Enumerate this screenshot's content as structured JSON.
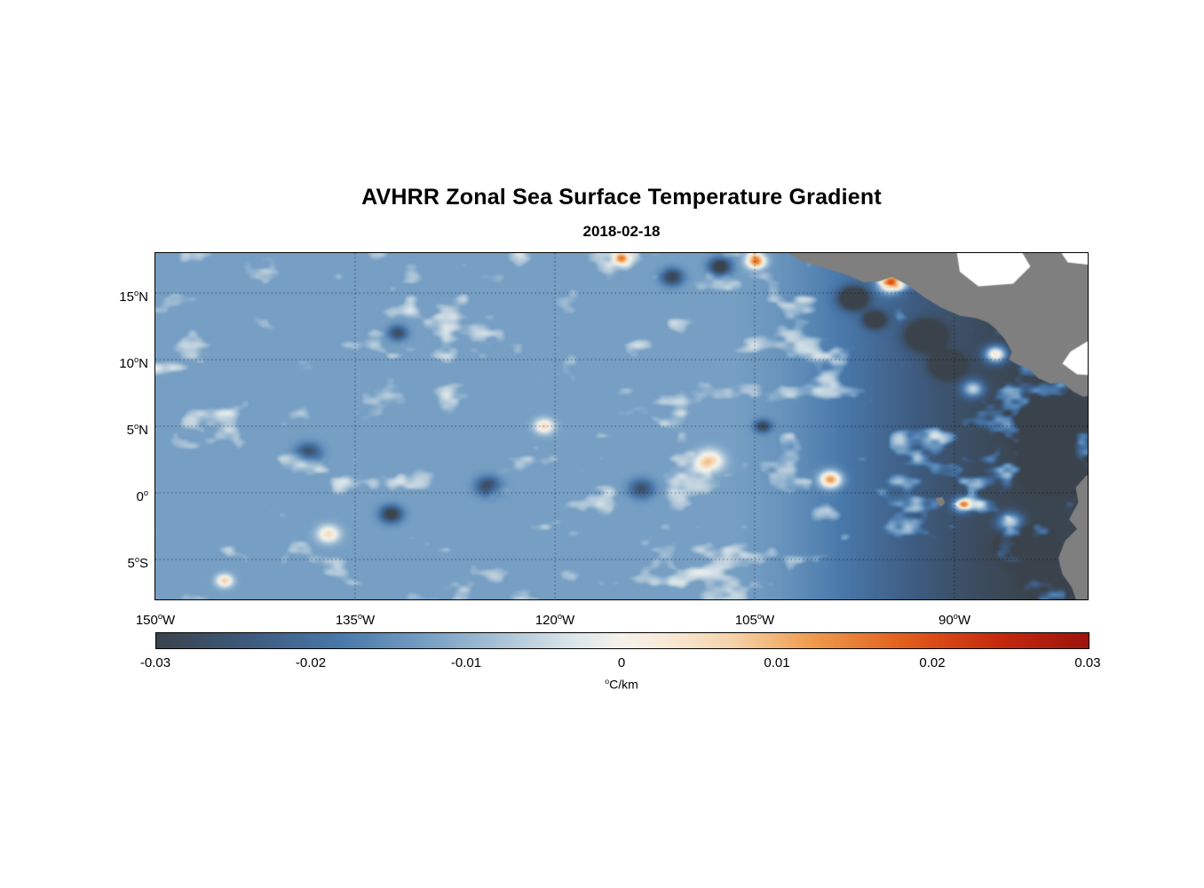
{
  "axes": {
    "deg": "o",
    "x_ticks": [
      {
        "num": "150",
        "hem": "W"
      },
      {
        "num": "135",
        "hem": "W"
      },
      {
        "num": "120",
        "hem": "W"
      },
      {
        "num": "105",
        "hem": "W"
      },
      {
        "num": "90",
        "hem": "W"
      }
    ],
    "y_ticks": [
      {
        "num": "15",
        "hem": "N"
      },
      {
        "num": "10",
        "hem": "N"
      },
      {
        "num": "5",
        "hem": "N"
      },
      {
        "num": "0",
        "hem": ""
      },
      {
        "num": "5",
        "hem": "S"
      }
    ]
  },
  "colorbar": {
    "ticks": [
      "-0.03",
      "-0.02",
      "-0.01",
      "0",
      "0.01",
      "0.02",
      "0.03"
    ],
    "unit_sup": "o",
    "unit_text": "C/km"
  },
  "chart_data": {
    "type": "heatmap",
    "title": "AVHRR Zonal Sea Surface Temperature Gradient",
    "date": "2018-02-18",
    "value_unit": "°C/km",
    "value_range": [
      -0.03,
      0.03
    ],
    "grid": "dotted",
    "x_axis": {
      "tick_labels_deg_west": [
        150,
        135,
        120,
        105,
        90
      ],
      "range_lon": [
        -150,
        -80
      ],
      "grid_lons": [
        -135,
        -120,
        -105,
        -90
      ]
    },
    "y_axis": {
      "tick_labels_deg": [
        "15N",
        "10N",
        "5N",
        "0",
        "5S"
      ],
      "range_lat": [
        -8,
        18
      ],
      "grid_lats": [
        15,
        10,
        5,
        0,
        -5
      ]
    },
    "colormap_stops": [
      [
        -0.03,
        "#3a434b"
      ],
      [
        -0.024,
        "#3d5a7e"
      ],
      [
        -0.018,
        "#4979ab"
      ],
      [
        -0.012,
        "#7ba3c6"
      ],
      [
        -0.007,
        "#b3c9da"
      ],
      [
        -0.003,
        "#dde7ea"
      ],
      [
        0.0,
        "#f5f2ea"
      ],
      [
        0.003,
        "#f8e9d6"
      ],
      [
        0.007,
        "#f6d3ab"
      ],
      [
        0.012,
        "#ef9e52"
      ],
      [
        0.018,
        "#e25f1d"
      ],
      [
        0.024,
        "#c62a0e"
      ],
      [
        0.03,
        "#9c130c"
      ]
    ],
    "land": {
      "color": "#7f7f7f",
      "polygons": {
        "central_america": [
          [
            -103.2,
            18.4
          ],
          [
            -101.5,
            17.4
          ],
          [
            -99.8,
            16.9
          ],
          [
            -98.2,
            16.4
          ],
          [
            -96.8,
            15.8
          ],
          [
            -95.6,
            15.9
          ],
          [
            -94.7,
            16.2
          ],
          [
            -93.5,
            15.6
          ],
          [
            -92.3,
            14.7
          ],
          [
            -91.0,
            13.9
          ],
          [
            -89.6,
            13.3
          ],
          [
            -88.3,
            13.1
          ],
          [
            -87.5,
            12.8
          ],
          [
            -86.9,
            12.3
          ],
          [
            -86.2,
            11.5
          ],
          [
            -85.7,
            10.6
          ],
          [
            -85.9,
            10.0
          ],
          [
            -85.2,
            9.6
          ],
          [
            -84.5,
            9.4
          ],
          [
            -83.7,
            8.6
          ],
          [
            -82.8,
            8.2
          ],
          [
            -81.9,
            8.3
          ],
          [
            -81.1,
            7.6
          ],
          [
            -80.3,
            7.2
          ],
          [
            -79.6,
            7.4
          ],
          [
            -79.0,
            7.0
          ],
          [
            -78.0,
            7.3
          ],
          [
            -78.0,
            19.0
          ],
          [
            -103.2,
            19.0
          ]
        ],
        "south_america": [
          [
            -80.1,
            1.3
          ],
          [
            -80.9,
            0.4
          ],
          [
            -80.7,
            -0.7
          ],
          [
            -81.4,
            -2.0
          ],
          [
            -80.8,
            -2.7
          ],
          [
            -81.7,
            -3.6
          ],
          [
            -82.2,
            -4.9
          ],
          [
            -81.9,
            -6.1
          ],
          [
            -81.2,
            -7.1
          ],
          [
            -80.7,
            -8.5
          ],
          [
            -78.0,
            -8.5
          ],
          [
            -78.0,
            1.3
          ]
        ],
        "galapagos": [
          [
            -91.4,
            -0.4
          ],
          [
            -90.9,
            -0.3
          ],
          [
            -90.7,
            -0.75
          ],
          [
            -91.0,
            -1.05
          ],
          [
            -91.35,
            -0.8
          ]
        ]
      },
      "nodata_white": [
        [
          [
            -89.9,
            18.5
          ],
          [
            -85.2,
            18.5
          ],
          [
            -84.3,
            17.0
          ],
          [
            -85.6,
            15.7
          ],
          [
            -88.2,
            15.5
          ],
          [
            -89.6,
            16.6
          ]
        ],
        [
          [
            -82.3,
            18.5
          ],
          [
            -78.0,
            18.5
          ],
          [
            -78.0,
            16.9
          ],
          [
            -81.5,
            17.3
          ]
        ],
        [
          [
            -79.8,
            11.5
          ],
          [
            -81.3,
            10.6
          ],
          [
            -81.9,
            9.7
          ],
          [
            -80.8,
            8.9
          ],
          [
            -79.3,
            8.8
          ],
          [
            -78.8,
            10.2
          ]
        ]
      ]
    },
    "notable_features": [
      {
        "lon": -104.9,
        "lat": 17.4,
        "amp": 0.03,
        "r": 0.7
      },
      {
        "lon": -107.6,
        "lat": 17.0,
        "amp": -0.022,
        "r": 0.8
      },
      {
        "lon": -94.8,
        "lat": 15.7,
        "amp": 0.032,
        "r": 0.9
      },
      {
        "lon": -97.6,
        "lat": 14.6,
        "amp": -0.028,
        "r": 1.0
      },
      {
        "lon": -96.0,
        "lat": 13.0,
        "amp": -0.02,
        "r": 0.8
      },
      {
        "lon": -92.2,
        "lat": 11.8,
        "amp": -0.026,
        "r": 1.2
      },
      {
        "lon": -90.6,
        "lat": 9.6,
        "amp": -0.024,
        "r": 1.0
      },
      {
        "lon": -86.9,
        "lat": 10.4,
        "amp": 0.032,
        "r": 0.8
      },
      {
        "lon": -88.6,
        "lat": 7.8,
        "amp": 0.022,
        "r": 0.8
      },
      {
        "lon": -83.4,
        "lat": 5.2,
        "amp": -0.03,
        "r": 1.6
      },
      {
        "lon": -82.6,
        "lat": 2.0,
        "amp": -0.028,
        "r": 1.4
      },
      {
        "lon": -84.8,
        "lat": -4.0,
        "amp": -0.026,
        "r": 1.3
      },
      {
        "lon": -83.0,
        "lat": -6.3,
        "amp": -0.024,
        "r": 1.2
      },
      {
        "lon": -99.3,
        "lat": 1.0,
        "amp": 0.03,
        "r": 0.8
      },
      {
        "lon": -108.4,
        "lat": 2.4,
        "amp": 0.02,
        "r": 1.0
      },
      {
        "lon": -89.4,
        "lat": -0.9,
        "amp": 0.028,
        "r": 0.7
      },
      {
        "lon": -85.8,
        "lat": -2.2,
        "amp": 0.024,
        "r": 0.9
      },
      {
        "lon": -132.3,
        "lat": -1.6,
        "amp": -0.02,
        "r": 0.8
      },
      {
        "lon": -137.0,
        "lat": -3.1,
        "amp": 0.018,
        "r": 0.8
      },
      {
        "lon": -138.5,
        "lat": 3.0,
        "amp": -0.015,
        "r": 0.9
      },
      {
        "lon": -120.8,
        "lat": 5.0,
        "amp": 0.018,
        "r": 0.7
      },
      {
        "lon": -115.0,
        "lat": 17.6,
        "amp": 0.022,
        "r": 0.6
      },
      {
        "lon": -111.2,
        "lat": 16.2,
        "amp": -0.018,
        "r": 0.8
      },
      {
        "lon": -104.4,
        "lat": 5.0,
        "amp": -0.016,
        "r": 0.6
      },
      {
        "lon": -144.8,
        "lat": -6.6,
        "amp": 0.02,
        "r": 0.6
      },
      {
        "lon": -131.8,
        "lat": 12.0,
        "amp": -0.015,
        "r": 0.7
      },
      {
        "lon": -125.0,
        "lat": 0.5,
        "amp": -0.016,
        "r": 0.9
      },
      {
        "lon": -113.5,
        "lat": 0.3,
        "amp": -0.014,
        "r": 0.9
      }
    ]
  }
}
